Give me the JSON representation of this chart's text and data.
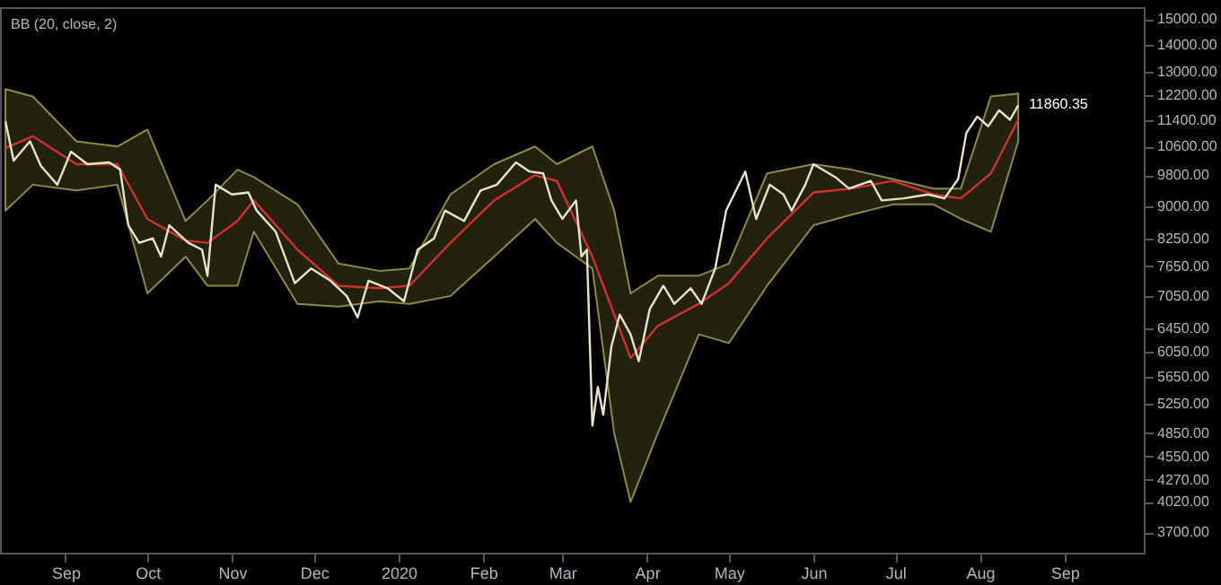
{
  "chart_data": {
    "type": "line",
    "log": "y",
    "line_style": "solid",
    "xlim": [
      "2019-08-08",
      "2020-09-30"
    ],
    "xticks": [
      {
        "value": "2019-09-01",
        "label": "Sep"
      },
      {
        "value": "2019-10-01",
        "label": "Oct"
      },
      {
        "value": "2019-11-01",
        "label": "Nov"
      },
      {
        "value": "2019-12-01",
        "label": "Dec"
      },
      {
        "value": "2020-01-01",
        "label": "2020"
      },
      {
        "value": "2020-02-01",
        "label": "Feb"
      },
      {
        "value": "2020-03-01",
        "label": "Mar"
      },
      {
        "value": "2020-04-01",
        "label": "Apr"
      },
      {
        "value": "2020-05-01",
        "label": "May"
      },
      {
        "value": "2020-06-01",
        "label": "Jun"
      },
      {
        "value": "2020-07-01",
        "label": "Jul"
      },
      {
        "value": "2020-08-01",
        "label": "Aug"
      },
      {
        "value": "2020-09-01",
        "label": "Sep"
      }
    ],
    "ylim": [
      3500,
      15500
    ],
    "yticks": [
      {
        "value": 3700,
        "label": "3700.00"
      },
      {
        "value": 4020,
        "label": "4020.00"
      },
      {
        "value": 4270,
        "label": "4270.00"
      },
      {
        "value": 4550,
        "label": "4550.00"
      },
      {
        "value": 4850,
        "label": "4850.00"
      },
      {
        "value": 5250,
        "label": "5250.00"
      },
      {
        "value": 5650,
        "label": "5650.00"
      },
      {
        "value": 6050,
        "label": "6050.00"
      },
      {
        "value": 6450,
        "label": "6450.00"
      },
      {
        "value": 7050,
        "label": "7050.00"
      },
      {
        "value": 7650,
        "label": "7650.00"
      },
      {
        "value": 8250,
        "label": "8250.00"
      },
      {
        "value": 9000,
        "label": "9000.00"
      },
      {
        "value": 9800,
        "label": "9800.00"
      },
      {
        "value": 10600,
        "label": "10600.00"
      },
      {
        "value": 11400,
        "label": "11400.00"
      },
      {
        "value": 12200,
        "label": "12200.00"
      },
      {
        "value": 13000,
        "label": "13000.00"
      },
      {
        "value": 14000,
        "label": "14000.00"
      },
      {
        "value": 15000,
        "label": "15000.00"
      }
    ],
    "annotations": [
      "BB (20, close, 2)",
      {
        "text": "11860.35",
        "x": "2020-08-15",
        "y": 11860.35
      }
    ],
    "series": [
      {
        "color": "#d32f2f",
        "x": [
          "2019-08-10",
          "2019-08-20",
          "2019-09-05",
          "2019-09-20",
          "2019-10-01",
          "2019-10-15",
          "2019-10-23",
          "2019-11-03",
          "2019-11-09",
          "2019-11-25",
          "2019-12-10",
          "2019-12-25",
          "2020-01-05",
          "2020-01-20",
          "2020-02-05",
          "2020-02-20",
          "2020-02-28",
          "2020-03-12",
          "2020-03-20",
          "2020-03-26",
          "2020-04-05",
          "2020-04-20",
          "2020-05-01",
          "2020-05-15",
          "2020-06-01",
          "2020-06-15",
          "2020-06-30",
          "2020-07-15",
          "2020-07-25",
          "2020-08-05",
          "2020-08-15"
        ],
        "values": [
          10550,
          10900,
          10100,
          10100,
          8700,
          8200,
          8150,
          8650,
          9150,
          8000,
          7250,
          7200,
          7250,
          8150,
          9150,
          9800,
          9650,
          7850,
          6700,
          5950,
          6500,
          6900,
          7300,
          8250,
          9350,
          9450,
          9650,
          9300,
          9200,
          9850,
          11400
        ],
        "upper": [
          12400,
          12150,
          10750,
          10600,
          11100,
          8650,
          9150,
          9950,
          9750,
          9050,
          7700,
          7550,
          7600,
          9300,
          10100,
          10600,
          10100,
          10600,
          8900,
          7100,
          7450,
          7450,
          7700,
          9850,
          10100,
          9950,
          9700,
          9450,
          9450,
          12150,
          12250
        ],
        "lower": [
          8900,
          9550,
          9400,
          9550,
          7100,
          7850,
          7250,
          7250,
          8400,
          6900,
          6850,
          6950,
          6900,
          7050,
          7850,
          8700,
          8150,
          7600,
          4850,
          4020,
          4850,
          6350,
          6200,
          7250,
          8550,
          8800,
          9050,
          9050,
          8700,
          8400,
          10750
        ]
      },
      {
        "color": "#e8e4c8",
        "x": [
          "2019-08-10",
          "2019-08-13",
          "2019-08-19",
          "2019-08-23",
          "2019-08-29",
          "2019-09-03",
          "2019-09-09",
          "2019-09-17",
          "2019-09-21",
          "2019-09-24",
          "2019-09-28",
          "2019-10-03",
          "2019-10-06",
          "2019-10-09",
          "2019-10-16",
          "2019-10-21",
          "2019-10-23",
          "2019-10-26",
          "2019-11-01",
          "2019-11-07",
          "2019-11-10",
          "2019-11-17",
          "2019-11-24",
          "2019-11-30",
          "2019-12-07",
          "2019-12-13",
          "2019-12-17",
          "2019-12-21",
          "2019-12-28",
          "2020-01-03",
          "2020-01-08",
          "2020-01-14",
          "2020-01-18",
          "2020-01-25",
          "2020-01-31",
          "2020-02-06",
          "2020-02-13",
          "2020-02-18",
          "2020-02-23",
          "2020-02-26",
          "2020-03-01",
          "2020-03-06",
          "2020-03-08",
          "2020-03-10",
          "2020-03-12",
          "2020-03-14",
          "2020-03-16",
          "2020-03-19",
          "2020-03-22",
          "2020-03-26",
          "2020-03-29",
          "2020-04-02",
          "2020-04-07",
          "2020-04-11",
          "2020-04-17",
          "2020-04-21",
          "2020-04-26",
          "2020-04-30",
          "2020-05-07",
          "2020-05-11",
          "2020-05-16",
          "2020-05-21",
          "2020-05-24",
          "2020-05-29",
          "2020-06-01",
          "2020-06-09",
          "2020-06-14",
          "2020-06-22",
          "2020-06-26",
          "2020-07-04",
          "2020-07-13",
          "2020-07-19",
          "2020-07-24",
          "2020-07-27",
          "2020-07-31",
          "2020-08-04",
          "2020-08-08",
          "2020-08-12",
          "2020-08-15"
        ],
        "values": [
          11350,
          10200,
          10750,
          10050,
          9550,
          10450,
          10100,
          10150,
          9950,
          8550,
          8150,
          8250,
          7850,
          8550,
          8150,
          8000,
          7450,
          9550,
          9300,
          9350,
          8900,
          8400,
          7300,
          7600,
          7350,
          7050,
          6650,
          7350,
          7200,
          6950,
          8000,
          8250,
          8900,
          8650,
          9400,
          9550,
          10150,
          9900,
          9850,
          9150,
          8700,
          9150,
          7850,
          8000,
          4950,
          5500,
          5100,
          6150,
          6700,
          6350,
          5900,
          6800,
          7250,
          6900,
          7200,
          6900,
          7600,
          8900,
          9900,
          8700,
          9550,
          9300,
          8900,
          9550,
          10100,
          9750,
          9450,
          9650,
          9150,
          9200,
          9300,
          9200,
          9700,
          11000,
          11500,
          11200,
          11700,
          11400,
          11860.35
        ]
      }
    ]
  }
}
